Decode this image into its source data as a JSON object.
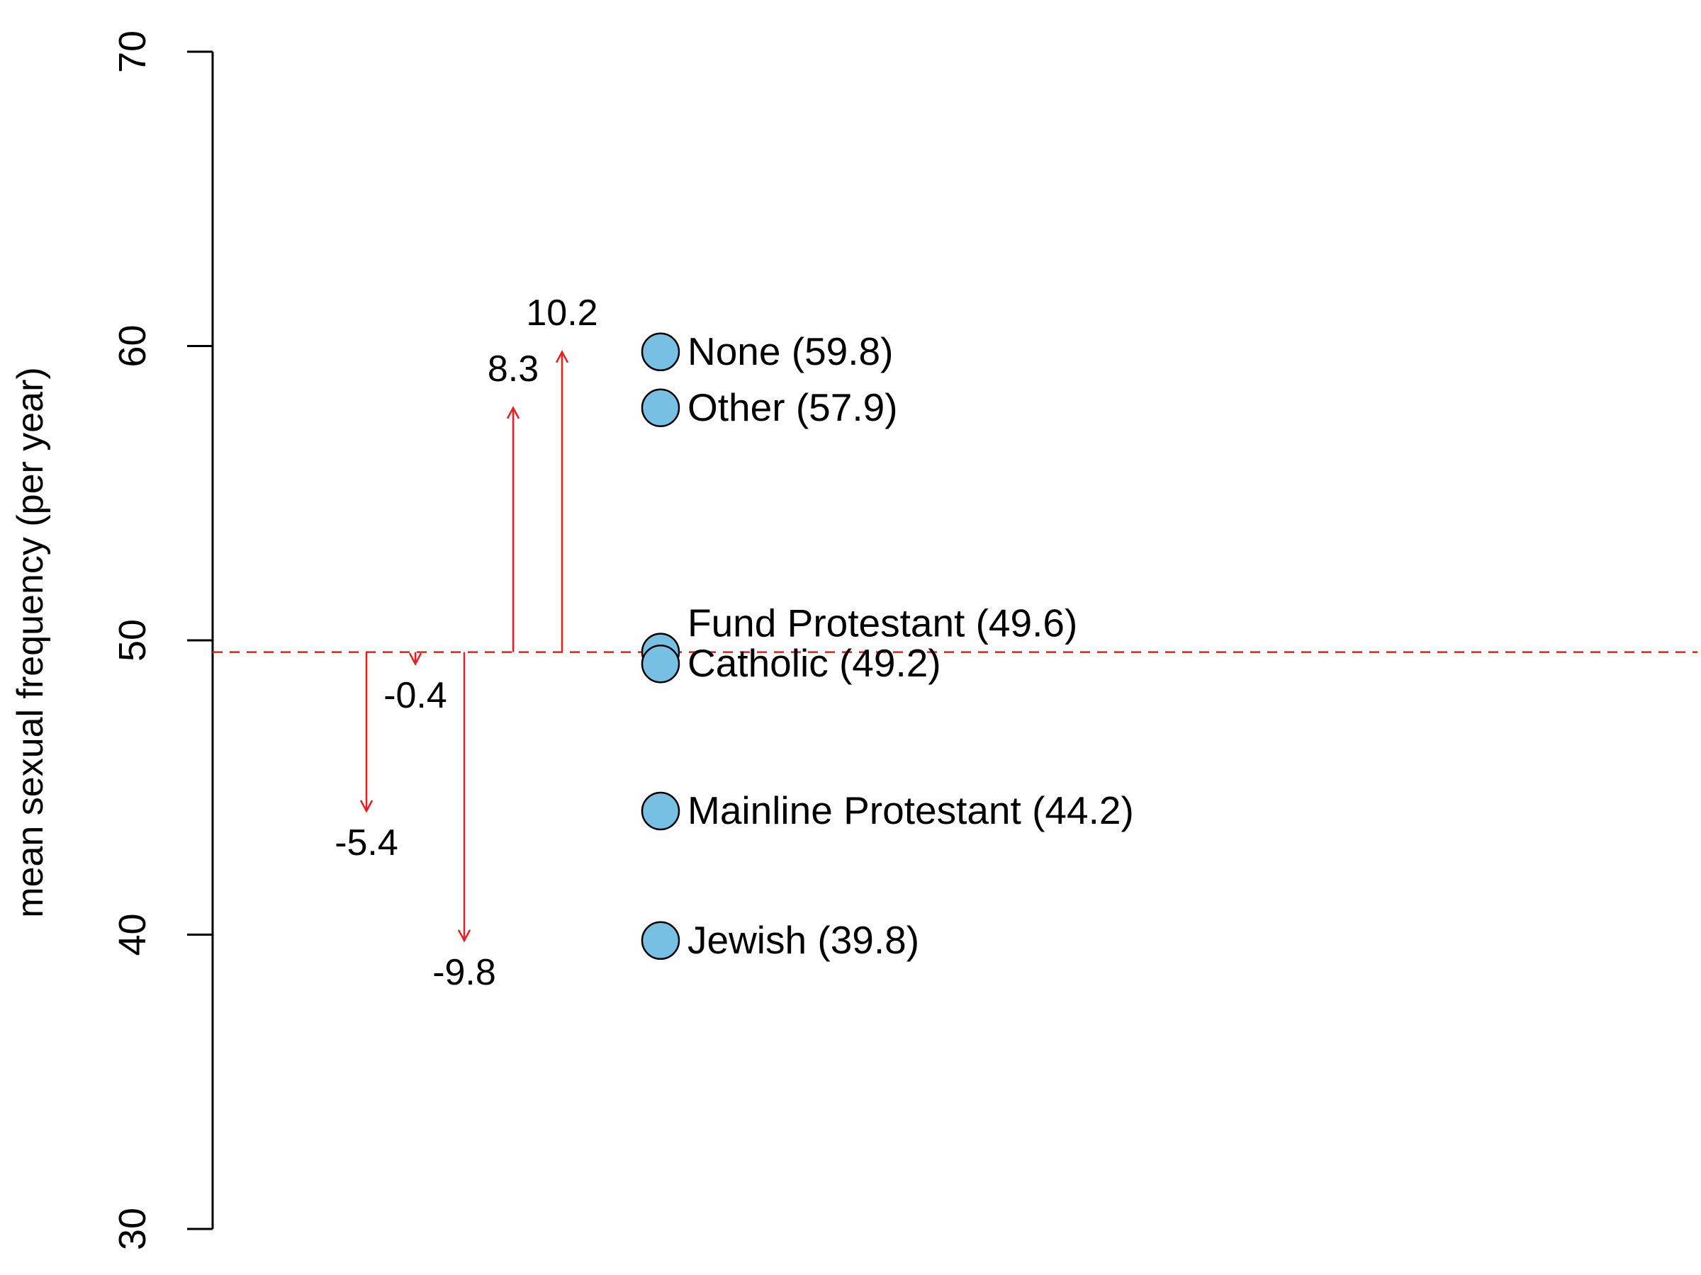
{
  "chart_data": {
    "type": "scatter",
    "ylabel": "mean sexual frequency (per year)",
    "ylim": [
      30,
      70
    ],
    "yticks": [
      30,
      40,
      50,
      60,
      70
    ],
    "reference_line": {
      "y": 49.6,
      "style": "dashed",
      "color": "#ee1c1c"
    },
    "points": [
      {
        "name": "None",
        "value": 59.8,
        "label": "None (59.8)"
      },
      {
        "name": "Other",
        "value": 57.9,
        "label": "Other (57.9)"
      },
      {
        "name": "Fund Protestant",
        "value": 49.6,
        "label": "Fund Protestant (49.6)"
      },
      {
        "name": "Catholic",
        "value": 49.2,
        "label": "Catholic (49.2)"
      },
      {
        "name": "Mainline Protestant",
        "value": 44.2,
        "label": "Mainline Protestant (44.2)"
      },
      {
        "name": "Jewish",
        "value": 39.8,
        "label": "Jewish (39.8)"
      }
    ],
    "differences": [
      {
        "name": "Mainline Protestant",
        "value": -5.4,
        "label": "-5.4"
      },
      {
        "name": "Catholic",
        "value": -0.4,
        "label": "-0.4"
      },
      {
        "name": "Jewish",
        "value": -9.8,
        "label": "-9.8"
      },
      {
        "name": "Other",
        "value": 8.3,
        "label": "8.3"
      },
      {
        "name": "None",
        "value": 10.2,
        "label": "10.2"
      }
    ],
    "point_color": "#78c0e3",
    "arrow_color": "#ee1c1c",
    "grid": false,
    "legend": "none"
  }
}
